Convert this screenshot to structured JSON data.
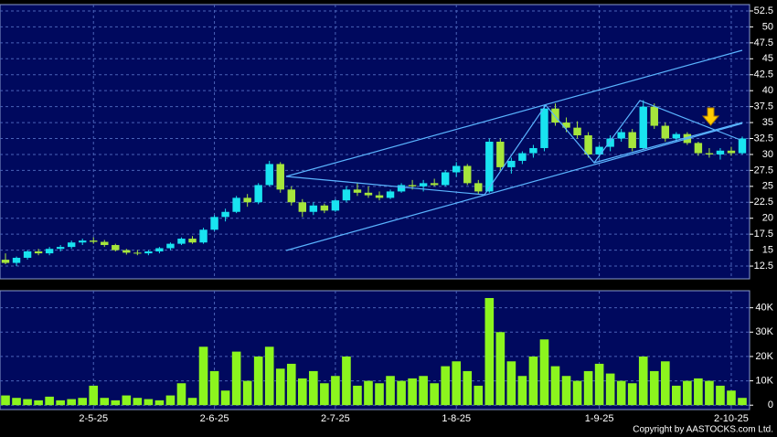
{
  "chart_data": [
    {
      "type": "candlestick",
      "open": [
        13.5,
        13.0,
        13.8,
        14.8,
        14.5,
        15.2,
        15.5,
        16.2,
        16.5,
        16.3,
        15.8,
        15.0,
        14.6,
        14.5,
        14.8,
        15.3,
        16.0,
        16.8,
        16.2,
        18.2,
        20.2,
        21.0,
        23.2,
        22.5,
        25.2,
        28.5,
        24.5,
        22.5,
        21.0,
        22.0,
        21.2,
        22.8,
        24.5,
        24.0,
        23.6,
        23.2,
        24.2,
        25.2,
        25.0,
        25.5,
        25.2,
        27.2,
        28.2,
        25.5,
        24.2,
        32.0,
        28.0,
        29.0,
        30.2,
        31.0,
        37.2,
        35.0,
        34.2,
        33.0,
        30.0,
        31.2,
        32.5,
        33.5,
        31.0,
        37.5,
        34.5,
        32.5,
        33.2,
        31.8,
        30.2,
        30.0,
        30.6,
        30.2
      ],
      "high": [
        14.5,
        14.0,
        15.0,
        15.2,
        15.5,
        15.8,
        16.5,
        16.8,
        17.0,
        16.6,
        16.0,
        15.2,
        15.0,
        15.0,
        15.5,
        16.2,
        17.0,
        17.2,
        18.5,
        20.5,
        21.5,
        23.5,
        23.8,
        25.5,
        29.0,
        28.8,
        25.0,
        23.0,
        22.5,
        22.3,
        23.0,
        25.0,
        25.5,
        25.0,
        24.2,
        24.5,
        25.5,
        26.0,
        26.0,
        26.2,
        27.5,
        28.8,
        28.5,
        26.0,
        32.5,
        32.5,
        29.5,
        30.5,
        31.5,
        37.8,
        38.0,
        35.8,
        35.2,
        33.5,
        31.5,
        33.0,
        34.0,
        34.0,
        38.5,
        38.0,
        35.0,
        33.5,
        33.5,
        32.0,
        31.0,
        31.0,
        31.2,
        32.8
      ],
      "low": [
        12.8,
        12.5,
        13.5,
        14.2,
        14.2,
        14.8,
        15.2,
        15.8,
        16.0,
        15.5,
        14.8,
        14.3,
        14.2,
        14.2,
        14.5,
        15.0,
        15.8,
        16.0,
        16.0,
        18.0,
        19.5,
        20.8,
        21.8,
        22.2,
        25.0,
        24.0,
        22.0,
        20.2,
        20.5,
        20.8,
        21.0,
        22.5,
        23.5,
        23.2,
        22.8,
        23.0,
        24.0,
        24.5,
        24.2,
        25.0,
        25.0,
        26.5,
        25.2,
        23.8,
        24.0,
        27.5,
        27.0,
        28.5,
        29.5,
        30.5,
        34.5,
        33.5,
        32.5,
        29.5,
        29.5,
        30.5,
        32.0,
        30.5,
        30.8,
        34.0,
        32.0,
        32.0,
        31.5,
        29.8,
        29.5,
        29.2,
        29.8,
        30.0
      ],
      "close": [
        13.0,
        13.8,
        14.8,
        14.5,
        15.2,
        15.5,
        16.2,
        16.5,
        16.3,
        15.8,
        15.0,
        14.6,
        14.5,
        14.8,
        15.3,
        16.0,
        16.8,
        16.2,
        18.2,
        20.2,
        21.0,
        23.2,
        22.5,
        25.2,
        28.5,
        24.5,
        22.5,
        21.0,
        22.0,
        21.2,
        22.8,
        24.5,
        24.0,
        23.6,
        23.2,
        24.2,
        25.2,
        25.0,
        25.5,
        25.2,
        27.2,
        28.2,
        25.5,
        24.2,
        32.0,
        28.0,
        29.0,
        30.2,
        31.0,
        37.2,
        35.0,
        34.2,
        33.0,
        30.0,
        31.2,
        32.5,
        33.5,
        31.0,
        37.5,
        34.5,
        32.5,
        33.2,
        31.8,
        30.2,
        30.0,
        30.6,
        30.2,
        32.5
      ],
      "up_color": "#19e3f0",
      "down_color": "#a6e63c",
      "ylim": [
        10.5,
        53.5
      ],
      "yticks": [
        12.5,
        15,
        17.5,
        20,
        22.5,
        25,
        27.5,
        30,
        32.5,
        35,
        37.5,
        40,
        42.5,
        45,
        47.5,
        50,
        52.5
      ],
      "grid": true
    },
    {
      "type": "bar",
      "categories": [
        null,
        null,
        null,
        null,
        null,
        null,
        null,
        null,
        "2-5-25",
        null,
        null,
        null,
        null,
        null,
        null,
        null,
        null,
        null,
        null,
        "2-6-25",
        null,
        null,
        null,
        null,
        null,
        null,
        null,
        null,
        null,
        null,
        "2-7-25",
        null,
        null,
        null,
        null,
        null,
        null,
        null,
        null,
        null,
        null,
        "1-8-25",
        null,
        null,
        null,
        null,
        null,
        null,
        null,
        null,
        null,
        null,
        null,
        null,
        "1-9-25",
        null,
        null,
        null,
        null,
        null,
        null,
        null,
        null,
        null,
        null,
        null,
        "2-10-25",
        null
      ],
      "values": [
        4000,
        3000,
        2500,
        2000,
        3500,
        2000,
        2500,
        3000,
        8000,
        3000,
        2000,
        4000,
        3000,
        2500,
        2000,
        4000,
        9000,
        3000,
        24000,
        14000,
        6000,
        22000,
        10000,
        20000,
        24000,
        15000,
        17000,
        11000,
        14000,
        9000,
        12000,
        20000,
        8000,
        10000,
        9000,
        12000,
        10000,
        11000,
        12000,
        9000,
        16000,
        18000,
        14000,
        8000,
        44000,
        30000,
        18000,
        12000,
        20000,
        27000,
        16000,
        12000,
        10000,
        14000,
        17000,
        13000,
        10000,
        9000,
        20000,
        14000,
        18000,
        8000,
        10000,
        11000,
        10000,
        8000,
        6000,
        3000
      ],
      "color": "#8cf51e",
      "ylim": [
        -1800,
        47000
      ],
      "yticks": [
        0,
        {
          "value": 10000,
          "label": "10K"
        },
        {
          "value": 20000,
          "label": "20K"
        },
        {
          "value": 30000,
          "label": "30K"
        },
        {
          "value": 40000,
          "label": "40K"
        }
      ],
      "grid": true
    }
  ],
  "copyright": "Copyright by AASTOCKS.com Ltd."
}
